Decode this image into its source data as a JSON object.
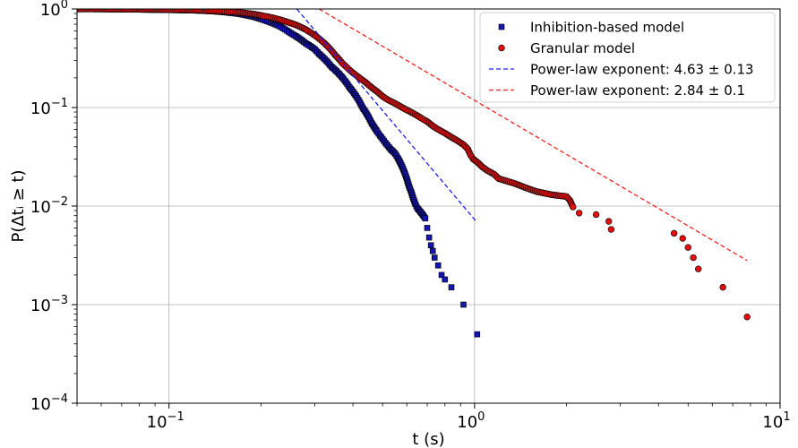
{
  "chart_data": {
    "type": "scatter",
    "title": "",
    "xlabel": "t (s)",
    "ylabel": "P(Δtᵢ ≥ t)",
    "x_scale": "log",
    "y_scale": "log",
    "xlim": [
      0.05,
      10
    ],
    "ylim": [
      0.0001,
      1
    ],
    "grid": true,
    "legend_position": "top-right",
    "x_ticks": [
      {
        "value": 0.1,
        "base": "10",
        "exp": "−1"
      },
      {
        "value": 1,
        "base": "10",
        "exp": "0"
      },
      {
        "value": 10,
        "base": "10",
        "exp": "1"
      }
    ],
    "y_ticks": [
      {
        "value": 1,
        "base": "10",
        "exp": "0"
      },
      {
        "value": 0.1,
        "base": "10",
        "exp": "−1"
      },
      {
        "value": 0.01,
        "base": "10",
        "exp": "−2"
      },
      {
        "value": 0.001,
        "base": "10",
        "exp": "−3"
      },
      {
        "value": 0.0001,
        "base": "10",
        "exp": "−4"
      }
    ],
    "series": [
      {
        "name": "Inhibition-based model",
        "kind": "scatter",
        "marker": "square",
        "color": "#1515b0",
        "edge_color": "#000000",
        "points": [
          [
            0.05,
            1.0
          ],
          [
            0.06,
            0.995
          ],
          [
            0.07,
            0.99
          ],
          [
            0.08,
            0.985
          ],
          [
            0.09,
            0.98
          ],
          [
            0.1,
            0.975
          ],
          [
            0.11,
            0.97
          ],
          [
            0.12,
            0.965
          ],
          [
            0.13,
            0.955
          ],
          [
            0.14,
            0.945
          ],
          [
            0.15,
            0.93
          ],
          [
            0.16,
            0.91
          ],
          [
            0.17,
            0.89
          ],
          [
            0.18,
            0.86
          ],
          [
            0.19,
            0.83
          ],
          [
            0.2,
            0.79
          ],
          [
            0.21,
            0.75
          ],
          [
            0.22,
            0.71
          ],
          [
            0.23,
            0.67
          ],
          [
            0.24,
            0.62
          ],
          [
            0.25,
            0.57
          ],
          [
            0.26,
            0.53
          ],
          [
            0.27,
            0.49
          ],
          [
            0.28,
            0.45
          ],
          [
            0.29,
            0.42
          ],
          [
            0.3,
            0.39
          ],
          [
            0.31,
            0.35
          ],
          [
            0.32,
            0.32
          ],
          [
            0.33,
            0.29
          ],
          [
            0.34,
            0.26
          ],
          [
            0.35,
            0.24
          ],
          [
            0.36,
            0.22
          ],
          [
            0.37,
            0.2
          ],
          [
            0.38,
            0.18
          ],
          [
            0.39,
            0.16
          ],
          [
            0.4,
            0.145
          ],
          [
            0.41,
            0.13
          ],
          [
            0.42,
            0.115
          ],
          [
            0.43,
            0.1
          ],
          [
            0.44,
            0.09
          ],
          [
            0.45,
            0.08
          ],
          [
            0.46,
            0.07
          ],
          [
            0.47,
            0.063
          ],
          [
            0.48,
            0.057
          ],
          [
            0.49,
            0.052
          ],
          [
            0.5,
            0.048
          ],
          [
            0.51,
            0.044
          ],
          [
            0.52,
            0.041
          ],
          [
            0.53,
            0.038
          ],
          [
            0.54,
            0.036
          ],
          [
            0.55,
            0.034
          ],
          [
            0.56,
            0.031
          ],
          [
            0.57,
            0.028
          ],
          [
            0.58,
            0.025
          ],
          [
            0.59,
            0.022
          ],
          [
            0.6,
            0.019
          ],
          [
            0.61,
            0.016
          ],
          [
            0.62,
            0.014
          ],
          [
            0.63,
            0.012
          ],
          [
            0.64,
            0.0105
          ],
          [
            0.65,
            0.0095
          ],
          [
            0.66,
            0.009
          ],
          [
            0.67,
            0.0085
          ],
          [
            0.68,
            0.008
          ],
          [
            0.69,
            0.0075
          ],
          [
            0.7,
            0.006
          ],
          [
            0.71,
            0.0048
          ],
          [
            0.72,
            0.004
          ],
          [
            0.73,
            0.0035
          ],
          [
            0.74,
            0.003
          ],
          [
            0.76,
            0.0025
          ],
          [
            0.78,
            0.002
          ],
          [
            0.8,
            0.0018
          ],
          [
            0.84,
            0.0015
          ],
          [
            0.92,
            0.001
          ],
          [
            1.02,
            0.0005
          ]
        ]
      },
      {
        "name": "Granular model",
        "kind": "scatter",
        "marker": "circle",
        "color": "#e01010",
        "edge_color": "#000000",
        "points": [
          [
            0.05,
            1.0
          ],
          [
            0.06,
            0.998
          ],
          [
            0.07,
            0.996
          ],
          [
            0.08,
            0.993
          ],
          [
            0.09,
            0.99
          ],
          [
            0.1,
            0.985
          ],
          [
            0.11,
            0.98
          ],
          [
            0.12,
            0.975
          ],
          [
            0.13,
            0.965
          ],
          [
            0.14,
            0.955
          ],
          [
            0.15,
            0.945
          ],
          [
            0.16,
            0.935
          ],
          [
            0.17,
            0.92
          ],
          [
            0.18,
            0.905
          ],
          [
            0.19,
            0.885
          ],
          [
            0.2,
            0.86
          ],
          [
            0.21,
            0.835
          ],
          [
            0.22,
            0.81
          ],
          [
            0.23,
            0.78
          ],
          [
            0.24,
            0.75
          ],
          [
            0.25,
            0.72
          ],
          [
            0.26,
            0.69
          ],
          [
            0.27,
            0.655
          ],
          [
            0.28,
            0.62
          ],
          [
            0.29,
            0.58
          ],
          [
            0.3,
            0.54
          ],
          [
            0.31,
            0.5
          ],
          [
            0.32,
            0.46
          ],
          [
            0.33,
            0.42
          ],
          [
            0.34,
            0.38
          ],
          [
            0.35,
            0.34
          ],
          [
            0.36,
            0.31
          ],
          [
            0.37,
            0.28
          ],
          [
            0.38,
            0.26
          ],
          [
            0.39,
            0.24
          ],
          [
            0.4,
            0.225
          ],
          [
            0.42,
            0.2
          ],
          [
            0.44,
            0.18
          ],
          [
            0.46,
            0.16
          ],
          [
            0.48,
            0.145
          ],
          [
            0.5,
            0.13
          ],
          [
            0.52,
            0.12
          ],
          [
            0.55,
            0.11
          ],
          [
            0.58,
            0.1
          ],
          [
            0.61,
            0.092
          ],
          [
            0.64,
            0.085
          ],
          [
            0.67,
            0.078
          ],
          [
            0.7,
            0.072
          ],
          [
            0.73,
            0.065
          ],
          [
            0.76,
            0.06
          ],
          [
            0.8,
            0.055
          ],
          [
            0.84,
            0.05
          ],
          [
            0.88,
            0.046
          ],
          [
            0.92,
            0.042
          ],
          [
            0.95,
            0.038
          ],
          [
            0.97,
            0.033
          ],
          [
            0.99,
            0.03
          ],
          [
            1.02,
            0.028
          ],
          [
            1.06,
            0.025
          ],
          [
            1.1,
            0.023
          ],
          [
            1.16,
            0.021
          ],
          [
            1.2,
            0.019
          ],
          [
            1.35,
            0.017
          ],
          [
            1.42,
            0.016
          ],
          [
            1.5,
            0.015
          ],
          [
            1.6,
            0.014
          ],
          [
            1.8,
            0.013
          ],
          [
            2.0,
            0.0125
          ],
          [
            2.05,
            0.0115
          ],
          [
            2.1,
            0.0098
          ],
          [
            2.2,
            0.0085
          ],
          [
            2.5,
            0.0082
          ],
          [
            2.75,
            0.007
          ],
          [
            2.8,
            0.0058
          ],
          [
            4.5,
            0.0053
          ],
          [
            4.8,
            0.0047
          ],
          [
            5.0,
            0.0038
          ],
          [
            5.2,
            0.003
          ],
          [
            5.4,
            0.0023
          ],
          [
            6.5,
            0.0015
          ],
          [
            7.8,
            0.00075
          ]
        ]
      },
      {
        "name": "Power-law exponent: 4.63 ± 0.13",
        "kind": "line",
        "dash": "dashed",
        "color": "#1f1fff",
        "x": [
          0.262,
          1.02
        ],
        "y": [
          1.0,
          0.0068
        ]
      },
      {
        "name": "Power-law exponent: 2.84 ± 0.1",
        "kind": "line",
        "dash": "dashed",
        "color": "#ff2020",
        "x": [
          0.31,
          7.8
        ],
        "y": [
          1.0,
          0.0028
        ]
      }
    ]
  }
}
